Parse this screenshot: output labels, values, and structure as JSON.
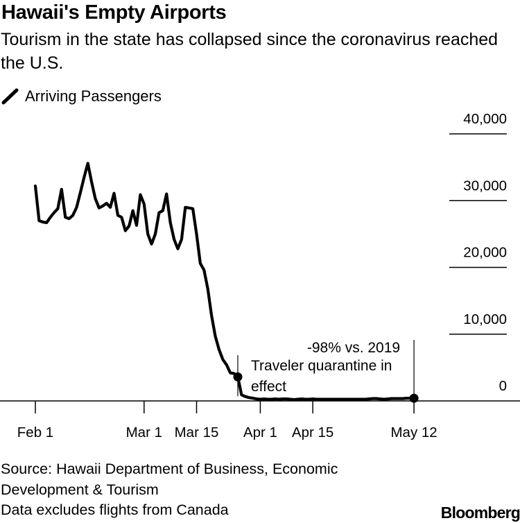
{
  "header": {
    "title": "Hawaii's Empty Airports",
    "subtitle": "Tourism in the state has collapsed since the coronavirus reached the U.S."
  },
  "legend": {
    "label": "Arriving Passengers"
  },
  "footer": {
    "source_lines": [
      "Source: Hawaii Department of Business, Economic",
      "Development & Tourism",
      "Data excludes flights from Canada"
    ],
    "brand": "Bloomberg"
  },
  "chart_data": {
    "type": "line",
    "title": "Hawaii's Empty Airports",
    "subtitle": "Tourism in the state has collapsed since the coronavirus reached the U.S.",
    "xlabel": "",
    "ylabel": "",
    "ylim": [
      0,
      40000
    ],
    "y_ticks": [
      {
        "value": 0,
        "label": "0"
      },
      {
        "value": 10000,
        "label": "10,000"
      },
      {
        "value": 20000,
        "label": "20,000"
      },
      {
        "value": 30000,
        "label": "30,000"
      },
      {
        "value": 40000,
        "label": "40,000"
      }
    ],
    "x_ticks": [
      {
        "day": 1,
        "label": "Feb 1"
      },
      {
        "day": 30,
        "label": "Mar 1"
      },
      {
        "day": 44,
        "label": "Mar 15"
      },
      {
        "day": 61,
        "label": "Apr 1"
      },
      {
        "day": 75,
        "label": "Apr 15"
      },
      {
        "day": 102,
        "label": "May 12"
      }
    ],
    "legend_position": "top-left",
    "grid": false,
    "series": [
      {
        "name": "Arriving Passengers",
        "color": "#000000",
        "x": [
          1,
          2,
          3,
          4,
          5,
          6,
          7,
          8,
          9,
          10,
          11,
          12,
          13,
          14,
          15,
          16,
          17,
          18,
          19,
          20,
          21,
          22,
          23,
          24,
          25,
          26,
          27,
          28,
          29,
          30,
          31,
          32,
          33,
          34,
          35,
          36,
          37,
          38,
          39,
          40,
          41,
          42,
          43,
          44,
          45,
          46,
          47,
          48,
          49,
          50,
          51,
          52,
          53,
          54,
          55,
          56,
          57,
          58,
          59,
          60,
          61,
          62,
          63,
          64,
          65,
          66,
          67,
          68,
          69,
          70,
          71,
          72,
          73,
          74,
          75,
          76,
          77,
          78,
          79,
          80,
          81,
          82,
          83,
          84,
          85,
          86,
          87,
          88,
          89,
          90,
          91,
          92,
          93,
          94,
          95,
          96,
          97,
          98,
          99,
          100,
          101,
          102
        ],
        "values": [
          32200,
          27000,
          26800,
          26700,
          27500,
          28200,
          28800,
          31700,
          27500,
          27300,
          27800,
          29000,
          31200,
          33500,
          35600,
          32800,
          30300,
          28900,
          29200,
          29600,
          29000,
          31100,
          27800,
          27500,
          25500,
          26200,
          28500,
          26300,
          30900,
          29500,
          25000,
          23500,
          25000,
          28200,
          28500,
          31000,
          26700,
          24200,
          22800,
          24200,
          29000,
          28900,
          28800,
          25000,
          20600,
          19600,
          16800,
          12800,
          9700,
          7700,
          6200,
          5400,
          4200,
          4100,
          3600,
          900,
          650,
          500,
          400,
          300,
          250,
          300,
          250,
          250,
          300,
          250,
          300,
          300,
          250,
          200,
          250,
          300,
          250,
          250,
          300,
          250,
          250,
          250,
          250,
          250,
          250,
          250,
          250,
          250,
          250,
          250,
          250,
          250,
          250,
          300,
          350,
          350,
          300,
          250,
          300,
          350,
          350,
          350,
          350,
          400,
          400,
          400
        ]
      }
    ],
    "annotations": [
      {
        "day": 55,
        "text": [
          "Traveler quarantine in",
          "effect"
        ]
      },
      {
        "day": 102,
        "text": [
          "-98% vs. 2019"
        ]
      }
    ]
  }
}
